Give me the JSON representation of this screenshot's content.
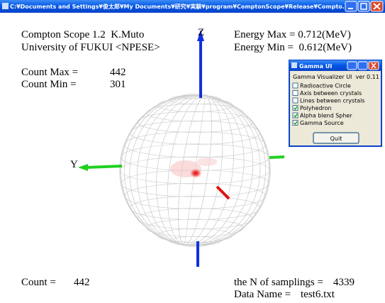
{
  "window": {
    "title": "C:¥Documents and Settings¥俊太郎¥My Documents¥研究¥実験¥program¥ComptonScope¥Release¥Compto..."
  },
  "view": {
    "z_label": "Z",
    "y_label": "Y"
  },
  "overlay": {
    "app_name": "Compton Scope 1.2  K.Muto",
    "affiliation": "University of FUKUI <NPESE>",
    "count_max_label": "Count Max =",
    "count_max": "442",
    "count_min_label": "Count Min =",
    "count_min": "301",
    "energy_max": "Energy Max = 0.712(MeV)",
    "energy_min": "Energy Min =  0.612(MeV)",
    "count_label": "Count =",
    "count": "442",
    "samplings_label": "the N of samplings =",
    "samplings": "4339",
    "data_name_label": "Data Name =",
    "data_name": "test6.txt"
  },
  "dialog": {
    "title": "Gamma UI",
    "caption": "Gamma Visualizer UI  ver 0.11",
    "options": [
      {
        "label": "Radioactive Circle",
        "checked": false
      },
      {
        "label": "Axis between crystals",
        "checked": false
      },
      {
        "label": "Lines between crystals",
        "checked": false
      },
      {
        "label": "Polyhedron",
        "checked": true
      },
      {
        "label": "Alpha blend Spher",
        "checked": true
      },
      {
        "label": "Gamma Source",
        "checked": true
      }
    ],
    "button": "Quit"
  }
}
